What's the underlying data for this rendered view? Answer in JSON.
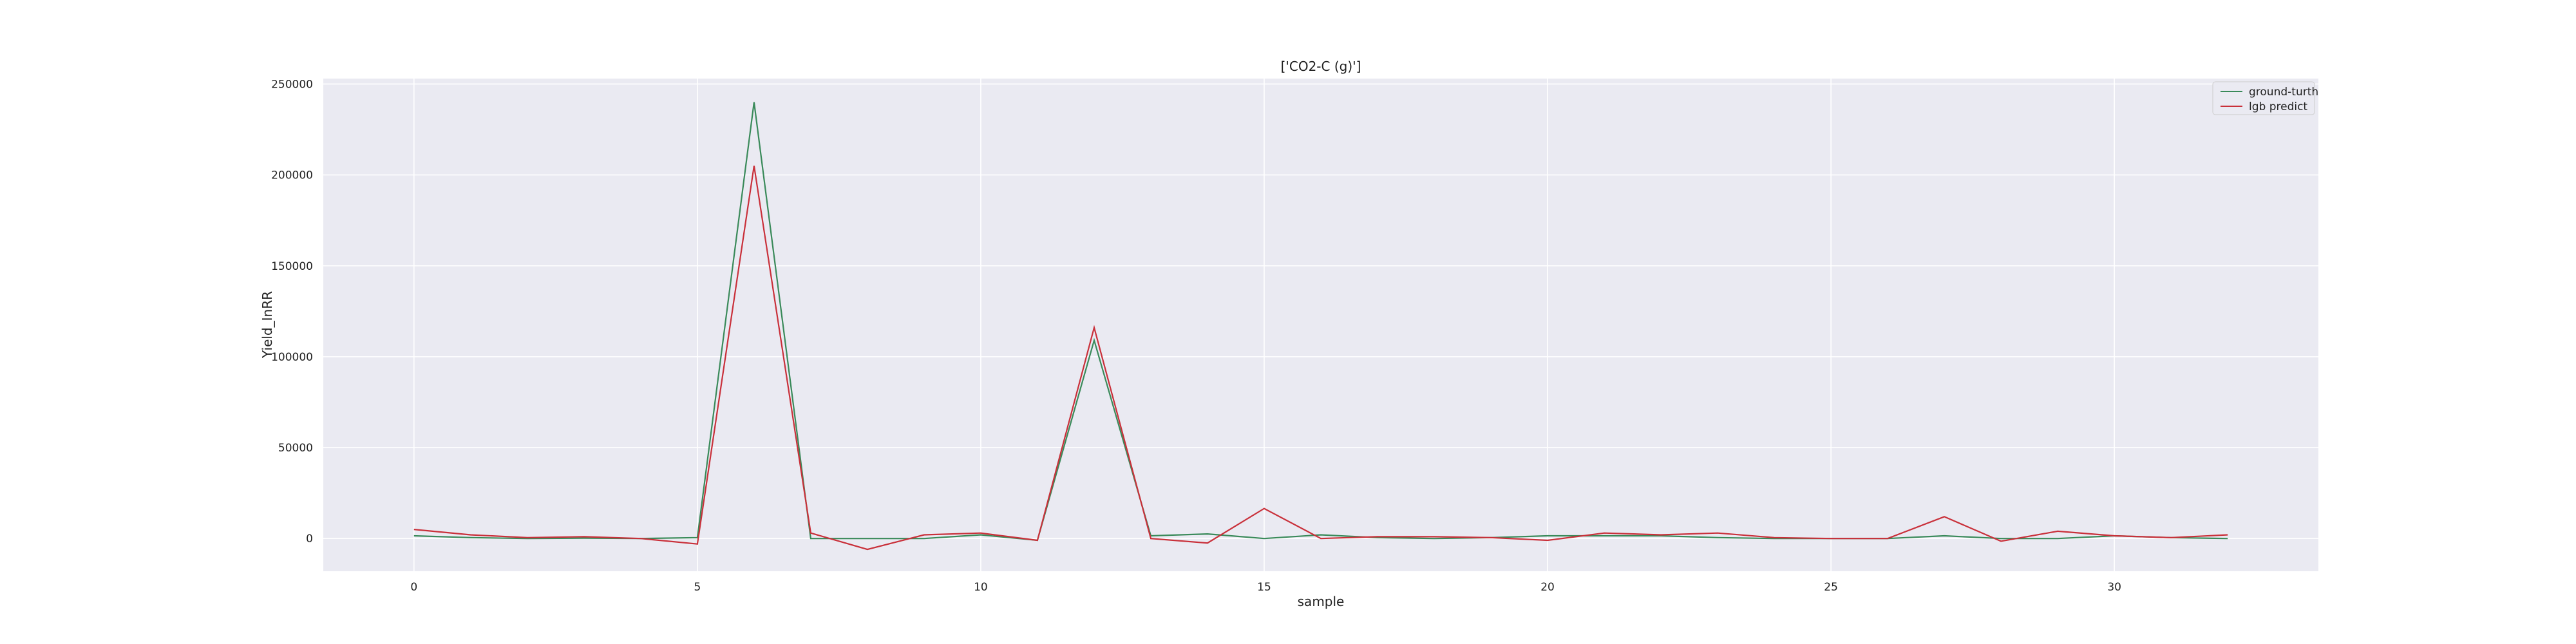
{
  "chart_data": {
    "type": "line",
    "title": "['CO2-C (g)']",
    "xlabel": "sample",
    "ylabel": "Yield_InRR",
    "xlim": [
      -1.6,
      33.6
    ],
    "ylim": [
      -18000,
      253000
    ],
    "xticks": [
      0,
      5,
      10,
      15,
      20,
      25,
      30
    ],
    "yticks": [
      0,
      50000,
      100000,
      150000,
      200000,
      250000
    ],
    "grid": true,
    "legend_position": "top-right",
    "x": [
      0,
      1,
      2,
      3,
      4,
      5,
      6,
      7,
      8,
      9,
      10,
      11,
      12,
      13,
      14,
      15,
      16,
      17,
      18,
      19,
      20,
      21,
      22,
      23,
      24,
      25,
      26,
      27,
      28,
      29,
      30,
      31,
      32
    ],
    "series": [
      {
        "name": "ground-turth",
        "color": "#3a8a5a",
        "values": [
          1500,
          500,
          0,
          200,
          0,
          500,
          240000,
          0,
          0,
          0,
          2000,
          -1000,
          109000,
          1500,
          2500,
          0,
          2000,
          500,
          0,
          500,
          1500,
          1500,
          1500,
          500,
          0,
          0,
          0,
          1500,
          0,
          0,
          1500,
          500,
          0
        ]
      },
      {
        "name": "lgb predict",
        "color": "#c9303a",
        "values": [
          5000,
          2000,
          500,
          1000,
          0,
          -3000,
          205000,
          3000,
          -6000,
          2000,
          3000,
          -1000,
          116000,
          0,
          -2500,
          16500,
          0,
          1000,
          1000,
          500,
          -1000,
          3000,
          2000,
          3000,
          500,
          0,
          0,
          12000,
          -1500,
          4000,
          1500,
          500,
          2000
        ]
      }
    ]
  }
}
